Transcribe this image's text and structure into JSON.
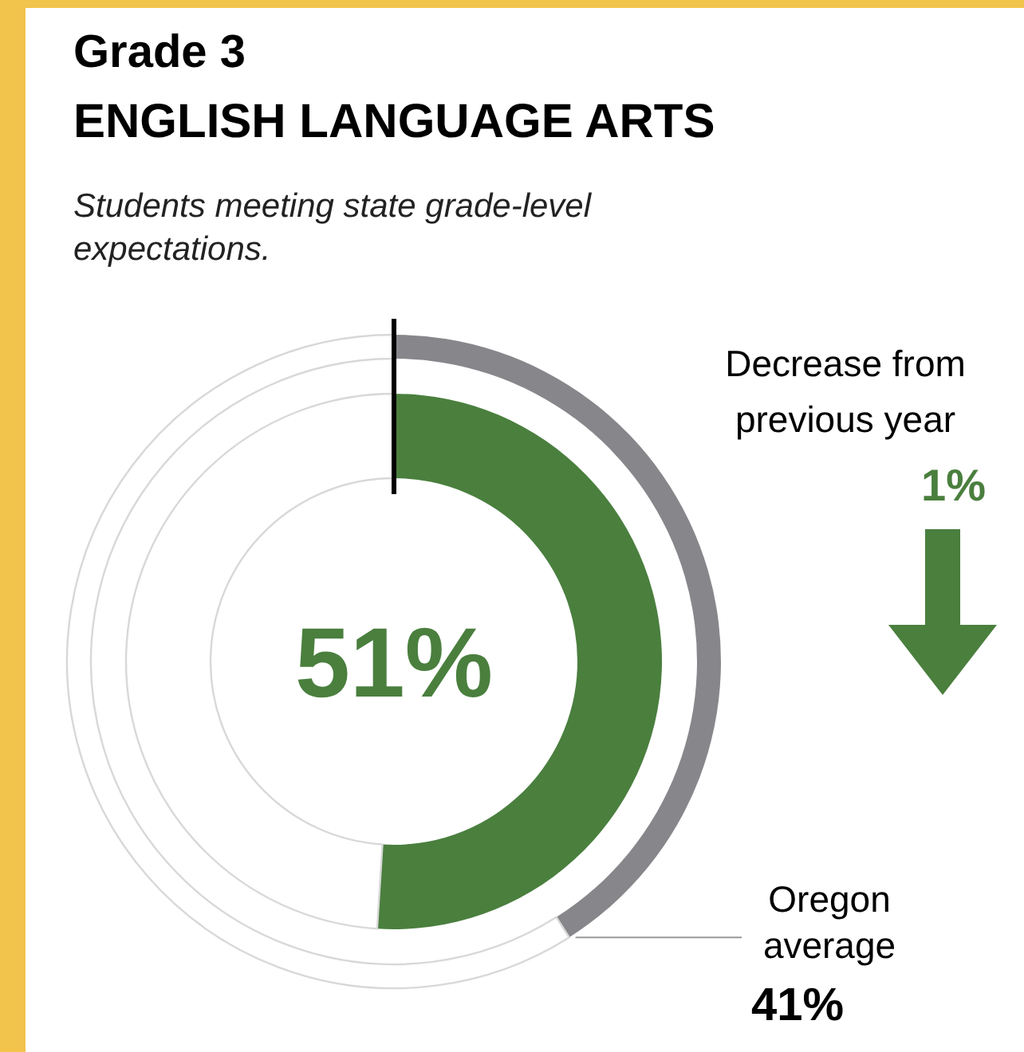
{
  "chart_data": {
    "type": "donut",
    "title": "Grade 3",
    "subtitle": "ENGLISH LANGUAGE ARTS",
    "xlabel": "Students meeting state grade-level expectations.",
    "categories": [
      null,
      null
    ],
    "series": [
      {
        "values": [
          51,
          49
        ],
        "colors": [
          "#4a7f3e",
          "#ffffff"
        ],
        "value_labels": [
          "51%",
          null
        ]
      },
      {
        "name": "Oregon average",
        "values": [
          41,
          59
        ],
        "colors": [
          "#87878b",
          "#ffffff"
        ],
        "value_labels": [
          "41%",
          null
        ]
      }
    ],
    "annotations": [
      "Decrease from previous year",
      "1%"
    ]
  }
}
